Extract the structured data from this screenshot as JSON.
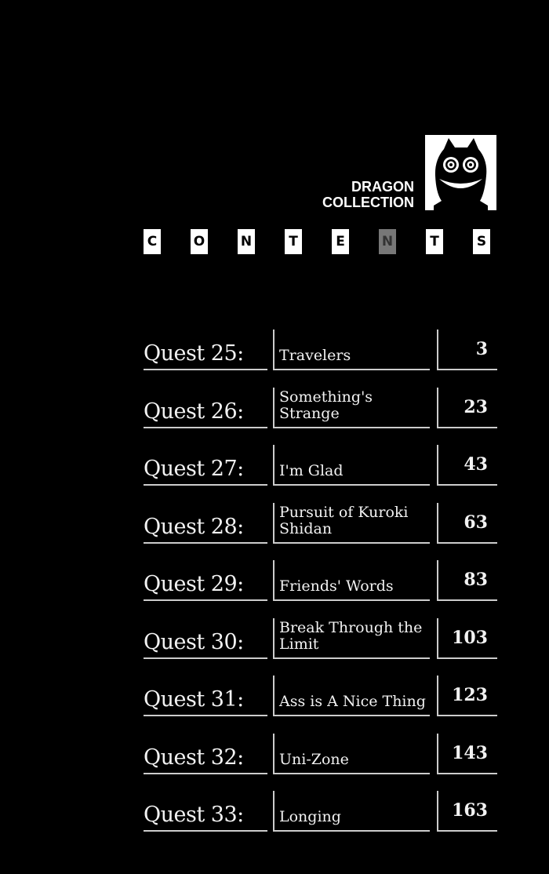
{
  "header": {
    "brand_line1": "DRAGON",
    "brand_line2": "COLLECTION",
    "contents_letters": [
      "C",
      "O",
      "N",
      "T",
      "E",
      "N",
      "T",
      "S"
    ],
    "highlighted_letter_index": 5
  },
  "toc": [
    {
      "quest": "Quest 25:",
      "title": "Travelers",
      "page": "3"
    },
    {
      "quest": "Quest 26:",
      "title": "Something's Strange",
      "page": "23"
    },
    {
      "quest": "Quest 27:",
      "title": "I'm Glad",
      "page": "43"
    },
    {
      "quest": "Quest 28:",
      "title": "Pursuit of Kuroki Shidan",
      "page": "63"
    },
    {
      "quest": "Quest 29:",
      "title": "Friends' Words",
      "page": "83"
    },
    {
      "quest": "Quest 30:",
      "title": "Break Through the Limit",
      "page": "103"
    },
    {
      "quest": "Quest 31:",
      "title": "Ass is A Nice Thing",
      "page": "123"
    },
    {
      "quest": "Quest 32:",
      "title": "Uni-Zone",
      "page": "143"
    },
    {
      "quest": "Quest 33:",
      "title": "Longing",
      "page": "163"
    }
  ]
}
